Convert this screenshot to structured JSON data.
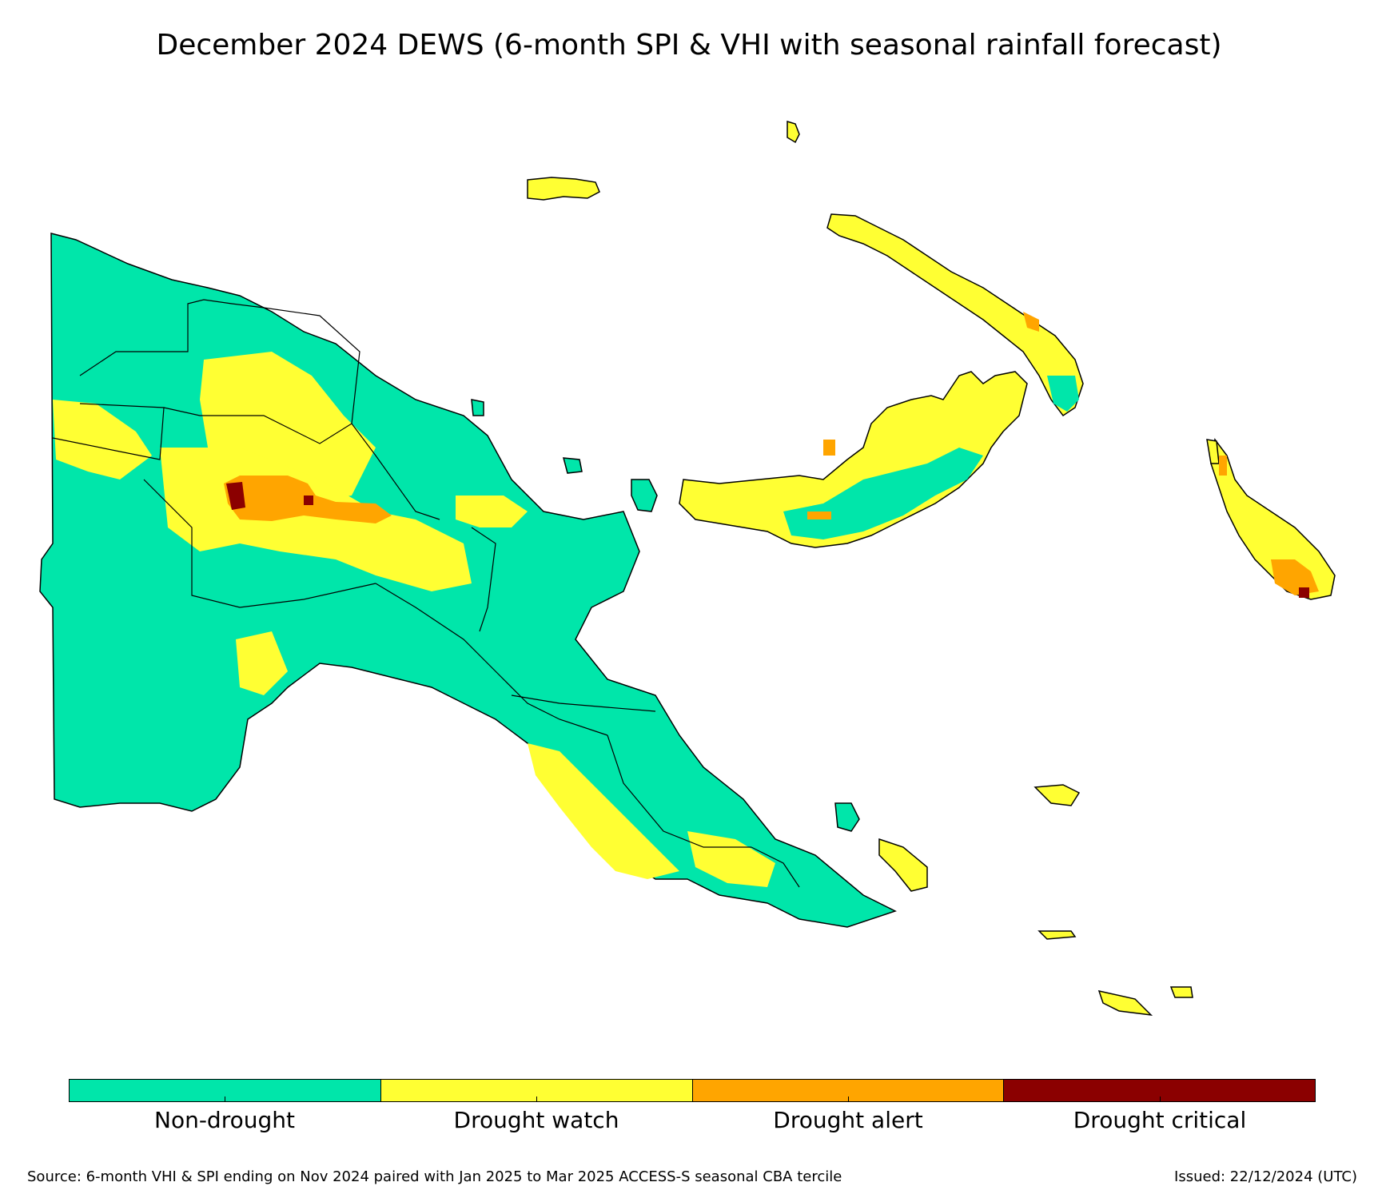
{
  "title": "December 2024 DEWS (6-month SPI & VHI with seasonal rainfall forecast)",
  "legend": {
    "items": [
      {
        "label": "Non-drought",
        "color": "#00e6aa"
      },
      {
        "label": "Drought watch",
        "color": "#ffff33"
      },
      {
        "label": "Drought alert",
        "color": "#ffa500"
      },
      {
        "label": "Drought critical",
        "color": "#8b0000"
      }
    ]
  },
  "footer": {
    "source": "Source: 6-month VHI & SPI ending on Nov 2024 paired with Jan 2025 to Mar 2025 ACCESS-S seasonal CBA tercile",
    "issued": "Issued: 22/12/2024 (UTC)"
  }
}
